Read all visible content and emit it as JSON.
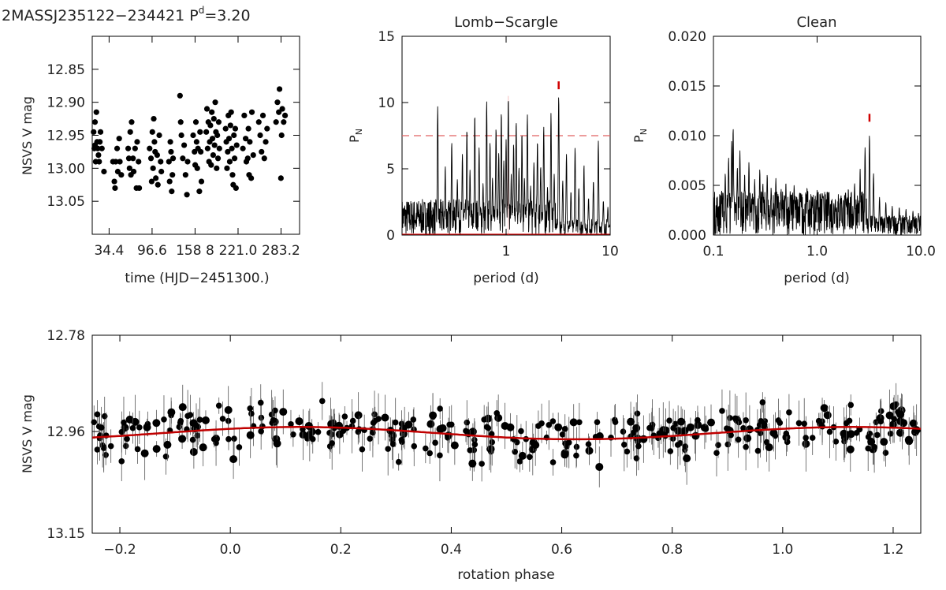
{
  "figure": {
    "title": "2MASSJ235122−234421  P",
    "title_sup": "d",
    "title_suffix": "=3.20"
  },
  "chart_data": [
    {
      "type": "scatter",
      "id": "lightcurve",
      "title": "",
      "xlabel": "time (HJD−2451300.)",
      "ylabel": "NSVS V mag",
      "xlim": [
        10,
        310
      ],
      "ylim": [
        12.8,
        13.1
      ],
      "yinverted": true,
      "xticks": [
        34.4,
        96.6,
        158.8,
        221.0,
        283.2
      ],
      "xtick_labels": [
        "34.4",
        "96.6",
        "158 8",
        "221.0",
        "283.2"
      ],
      "yticks": [
        12.85,
        12.9,
        12.95,
        13.0,
        13.05
      ],
      "ytick_labels": [
        "12.85",
        "12.90",
        "12.95",
        "13.00",
        "13.05"
      ],
      "points": [
        [
          12,
          12.945
        ],
        [
          13,
          12.97
        ],
        [
          14,
          12.965
        ],
        [
          15,
          12.99
        ],
        [
          14,
          12.93
        ],
        [
          16,
          12.915
        ],
        [
          17,
          12.96
        ],
        [
          18,
          12.97
        ],
        [
          19,
          12.98
        ],
        [
          21,
          12.96
        ],
        [
          20,
          12.99
        ],
        [
          22,
          12.945
        ],
        [
          24,
          12.97
        ],
        [
          27,
          13.005
        ],
        [
          40,
          12.99
        ],
        [
          42,
          13.02
        ],
        [
          43,
          13.03
        ],
        [
          44,
          12.99
        ],
        [
          46,
          12.97
        ],
        [
          47,
          13.005
        ],
        [
          49,
          12.955
        ],
        [
          50,
          12.99
        ],
        [
          52,
          13.01
        ],
        [
          62,
          12.97
        ],
        [
          63,
          12.985
        ],
        [
          64,
          13.0
        ],
        [
          65,
          12.945
        ],
        [
          66,
          13.01
        ],
        [
          67,
          12.93
        ],
        [
          69,
          12.985
        ],
        [
          70,
          13.005
        ],
        [
          72,
          12.97
        ],
        [
          74,
          13.03
        ],
        [
          75,
          12.96
        ],
        [
          77,
          12.99
        ],
        [
          78,
          13.03
        ],
        [
          93,
          12.97
        ],
        [
          95,
          12.985
        ],
        [
          96,
          13.02
        ],
        [
          97,
          12.945
        ],
        [
          98,
          13.0
        ],
        [
          99,
          12.925
        ],
        [
          100,
          12.96
        ],
        [
          101,
          12.975
        ],
        [
          102,
          13.015
        ],
        [
          104,
          12.98
        ],
        [
          105,
          13.025
        ],
        [
          107,
          12.95
        ],
        [
          109,
          12.99
        ],
        [
          110,
          13.005
        ],
        [
          121,
          12.99
        ],
        [
          122,
          13.02
        ],
        [
          123,
          12.96
        ],
        [
          124,
          12.975
        ],
        [
          125,
          13.035
        ],
        [
          126,
          13.01
        ],
        [
          127,
          12.985
        ],
        [
          137,
          12.89
        ],
        [
          138,
          12.93
        ],
        [
          139,
          12.95
        ],
        [
          141,
          12.985
        ],
        [
          143,
          12.965
        ],
        [
          145,
          13.01
        ],
        [
          147,
          13.04
        ],
        [
          148,
          12.99
        ],
        [
          156,
          12.95
        ],
        [
          158,
          12.975
        ],
        [
          159,
          12.995
        ],
        [
          160,
          12.93
        ],
        [
          161,
          12.96
        ],
        [
          162,
          13.0
        ],
        [
          163,
          12.97
        ],
        [
          165,
          13.035
        ],
        [
          166,
          12.945
        ],
        [
          167,
          12.975
        ],
        [
          168,
          13.02
        ],
        [
          175,
          12.945
        ],
        [
          176,
          12.91
        ],
        [
          177,
          12.97
        ],
        [
          178,
          12.93
        ],
        [
          179,
          12.99
        ],
        [
          180,
          12.96
        ],
        [
          181,
          12.935
        ],
        [
          182,
          12.995
        ],
        [
          183,
          12.915
        ],
        [
          184,
          12.955
        ],
        [
          185,
          12.98
        ],
        [
          186,
          12.925
        ],
        [
          187,
          12.965
        ],
        [
          188,
          12.9
        ],
        [
          189,
          12.945
        ],
        [
          190,
          13.0
        ],
        [
          191,
          12.95
        ],
        [
          192,
          12.985
        ],
        [
          193,
          12.93
        ],
        [
          194,
          12.97
        ],
        [
          203,
          12.94
        ],
        [
          204,
          12.96
        ],
        [
          205,
          13.0
        ],
        [
          206,
          12.975
        ],
        [
          207,
          12.92
        ],
        [
          208,
          12.955
        ],
        [
          209,
          12.99
        ],
        [
          210,
          12.935
        ],
        [
          211,
          12.915
        ],
        [
          212,
          12.97
        ],
        [
          213,
          13.01
        ],
        [
          214,
          13.025
        ],
        [
          215,
          12.95
        ],
        [
          216,
          12.985
        ],
        [
          217,
          12.94
        ],
        [
          218,
          13.03
        ],
        [
          219,
          12.965
        ],
        [
          228,
          12.97
        ],
        [
          230,
          12.92
        ],
        [
          232,
          12.955
        ],
        [
          233,
          12.99
        ],
        [
          235,
          12.985
        ],
        [
          236,
          12.94
        ],
        [
          237,
          13.01
        ],
        [
          238,
          12.96
        ],
        [
          240,
          13.015
        ],
        [
          241,
          12.915
        ],
        [
          243,
          12.98
        ],
        [
          251,
          12.93
        ],
        [
          253,
          12.95
        ],
        [
          255,
          12.975
        ],
        [
          257,
          12.92
        ],
        [
          259,
          12.985
        ],
        [
          261,
          12.96
        ],
        [
          263,
          12.94
        ],
        [
          276,
          12.93
        ],
        [
          278,
          12.9
        ],
        [
          280,
          12.915
        ],
        [
          281,
          12.88
        ],
        [
          283,
          13.015
        ],
        [
          284,
          12.95
        ],
        [
          285,
          12.91
        ],
        [
          287,
          12.93
        ],
        [
          289,
          12.92
        ]
      ]
    },
    {
      "type": "line",
      "id": "lomb-scargle",
      "title": "Lomb−Scargle",
      "xlabel": "period (d)",
      "ylabel": "P",
      "ylabel_sub": "N",
      "xscale": "log",
      "xlim": [
        0.1,
        10.0
      ],
      "ylim": [
        0,
        15
      ],
      "xticks": [
        1,
        10
      ],
      "xtick_labels": [
        "1",
        "10"
      ],
      "yticks": [
        0,
        5,
        10,
        15
      ],
      "ytick_labels": [
        "0",
        "5",
        "10",
        "15"
      ],
      "false_alarm_level": 7.5,
      "peak_period": 3.2,
      "peak_marker_value": 11.3,
      "peaks": [
        [
          0.22,
          9.7
        ],
        [
          0.26,
          5.2
        ],
        [
          0.3,
          7.0
        ],
        [
          0.34,
          4.2
        ],
        [
          0.38,
          6.1
        ],
        [
          0.42,
          8.0
        ],
        [
          0.45,
          4.9
        ],
        [
          0.5,
          9.1
        ],
        [
          0.55,
          6.6
        ],
        [
          0.6,
          3.9
        ],
        [
          0.65,
          10.1
        ],
        [
          0.7,
          7.0
        ],
        [
          0.74,
          4.3
        ],
        [
          0.8,
          8.1
        ],
        [
          0.85,
          6.2
        ],
        [
          0.9,
          9.3
        ],
        [
          0.95,
          5.6
        ],
        [
          1.0,
          7.2
        ],
        [
          1.05,
          10.4
        ],
        [
          1.12,
          4.6
        ],
        [
          1.18,
          6.9
        ],
        [
          1.25,
          8.6
        ],
        [
          1.33,
          5.1
        ],
        [
          1.42,
          7.7
        ],
        [
          1.5,
          4.3
        ],
        [
          1.6,
          9.1
        ],
        [
          1.72,
          3.7
        ],
        [
          1.85,
          5.5
        ],
        [
          2.0,
          7.1
        ],
        [
          2.15,
          5.2
        ],
        [
          2.3,
          8.2
        ],
        [
          2.5,
          3.6
        ],
        [
          2.7,
          9.2
        ],
        [
          2.9,
          4.6
        ],
        [
          3.2,
          10.5
        ],
        [
          3.5,
          4.1
        ],
        [
          3.8,
          6.1
        ],
        [
          4.2,
          3.3
        ],
        [
          4.6,
          6.6
        ],
        [
          5.0,
          3.6
        ],
        [
          5.6,
          5.3
        ],
        [
          6.2,
          2.8
        ],
        [
          6.9,
          4.1
        ],
        [
          7.7,
          7.1
        ],
        [
          8.6,
          2.6
        ],
        [
          9.5,
          2.1
        ]
      ]
    },
    {
      "type": "line",
      "id": "clean",
      "title": "Clean",
      "xlabel": "period (d)",
      "ylabel": "P",
      "ylabel_sub": "N",
      "xscale": "log",
      "xlim": [
        0.1,
        10.0
      ],
      "ylim": [
        0,
        0.02
      ],
      "xticks": [
        0.1,
        1.0,
        10.0
      ],
      "xtick_labels": [
        "0.1",
        "1.0",
        "10.0"
      ],
      "yticks": [
        0.0,
        0.005,
        0.01,
        0.015,
        0.02
      ],
      "ytick_labels": [
        "0.000",
        "0.005",
        "0.010",
        "0.015",
        "0.020"
      ],
      "peak_period": 3.2,
      "peak_marker_value": 0.0118,
      "peaks": [
        [
          0.12,
          0.0045
        ],
        [
          0.13,
          0.0062
        ],
        [
          0.14,
          0.0078
        ],
        [
          0.15,
          0.0095
        ],
        [
          0.155,
          0.0108
        ],
        [
          0.17,
          0.0068
        ],
        [
          0.18,
          0.0085
        ],
        [
          0.2,
          0.0062
        ],
        [
          0.22,
          0.0073
        ],
        [
          0.25,
          0.0056
        ],
        [
          0.28,
          0.0066
        ],
        [
          0.3,
          0.0052
        ],
        [
          0.33,
          0.0061
        ],
        [
          0.36,
          0.0048
        ],
        [
          0.4,
          0.0057
        ],
        [
          0.45,
          0.0046
        ],
        [
          0.5,
          0.0053
        ],
        [
          0.55,
          0.0044
        ],
        [
          0.6,
          0.005
        ],
        [
          0.7,
          0.0042
        ],
        [
          0.8,
          0.0048
        ],
        [
          0.9,
          0.0039
        ],
        [
          1.0,
          0.0045
        ],
        [
          1.15,
          0.0039
        ],
        [
          1.3,
          0.0043
        ],
        [
          1.5,
          0.0036
        ],
        [
          1.7,
          0.004
        ],
        [
          2.0,
          0.0047
        ],
        [
          2.3,
          0.0052
        ],
        [
          2.6,
          0.0067
        ],
        [
          2.9,
          0.0088
        ],
        [
          3.2,
          0.0101
        ],
        [
          3.5,
          0.0062
        ],
        [
          4.0,
          0.0038
        ],
        [
          4.6,
          0.0033
        ],
        [
          5.3,
          0.0029
        ],
        [
          6.2,
          0.0028
        ],
        [
          7.2,
          0.0026
        ],
        [
          8.4,
          0.0024
        ],
        [
          9.5,
          0.0022
        ]
      ]
    },
    {
      "type": "scatter",
      "id": "phased",
      "title": "",
      "xlabel": "rotation phase",
      "ylabel": "NSVS V mag",
      "xlim": [
        -0.25,
        1.25
      ],
      "ylim": [
        12.78,
        13.15
      ],
      "yinverted": true,
      "xticks": [
        -0.2,
        0.0,
        0.2,
        0.4,
        0.6,
        0.8,
        1.0,
        1.2
      ],
      "xtick_labels": [
        "−0.2",
        "0.0",
        "0.2",
        "0.4",
        "0.6",
        "0.8",
        "1.0",
        "1.2"
      ],
      "yticks": [
        12.78,
        12.96,
        13.15
      ],
      "ytick_labels": [
        "12.78",
        "12.96",
        "13.15"
      ],
      "fit": {
        "mean": 12.963,
        "amplitude": 0.0115,
        "peak_phase": 0.125,
        "color": "#c00000"
      },
      "point_count": 360
    }
  ]
}
